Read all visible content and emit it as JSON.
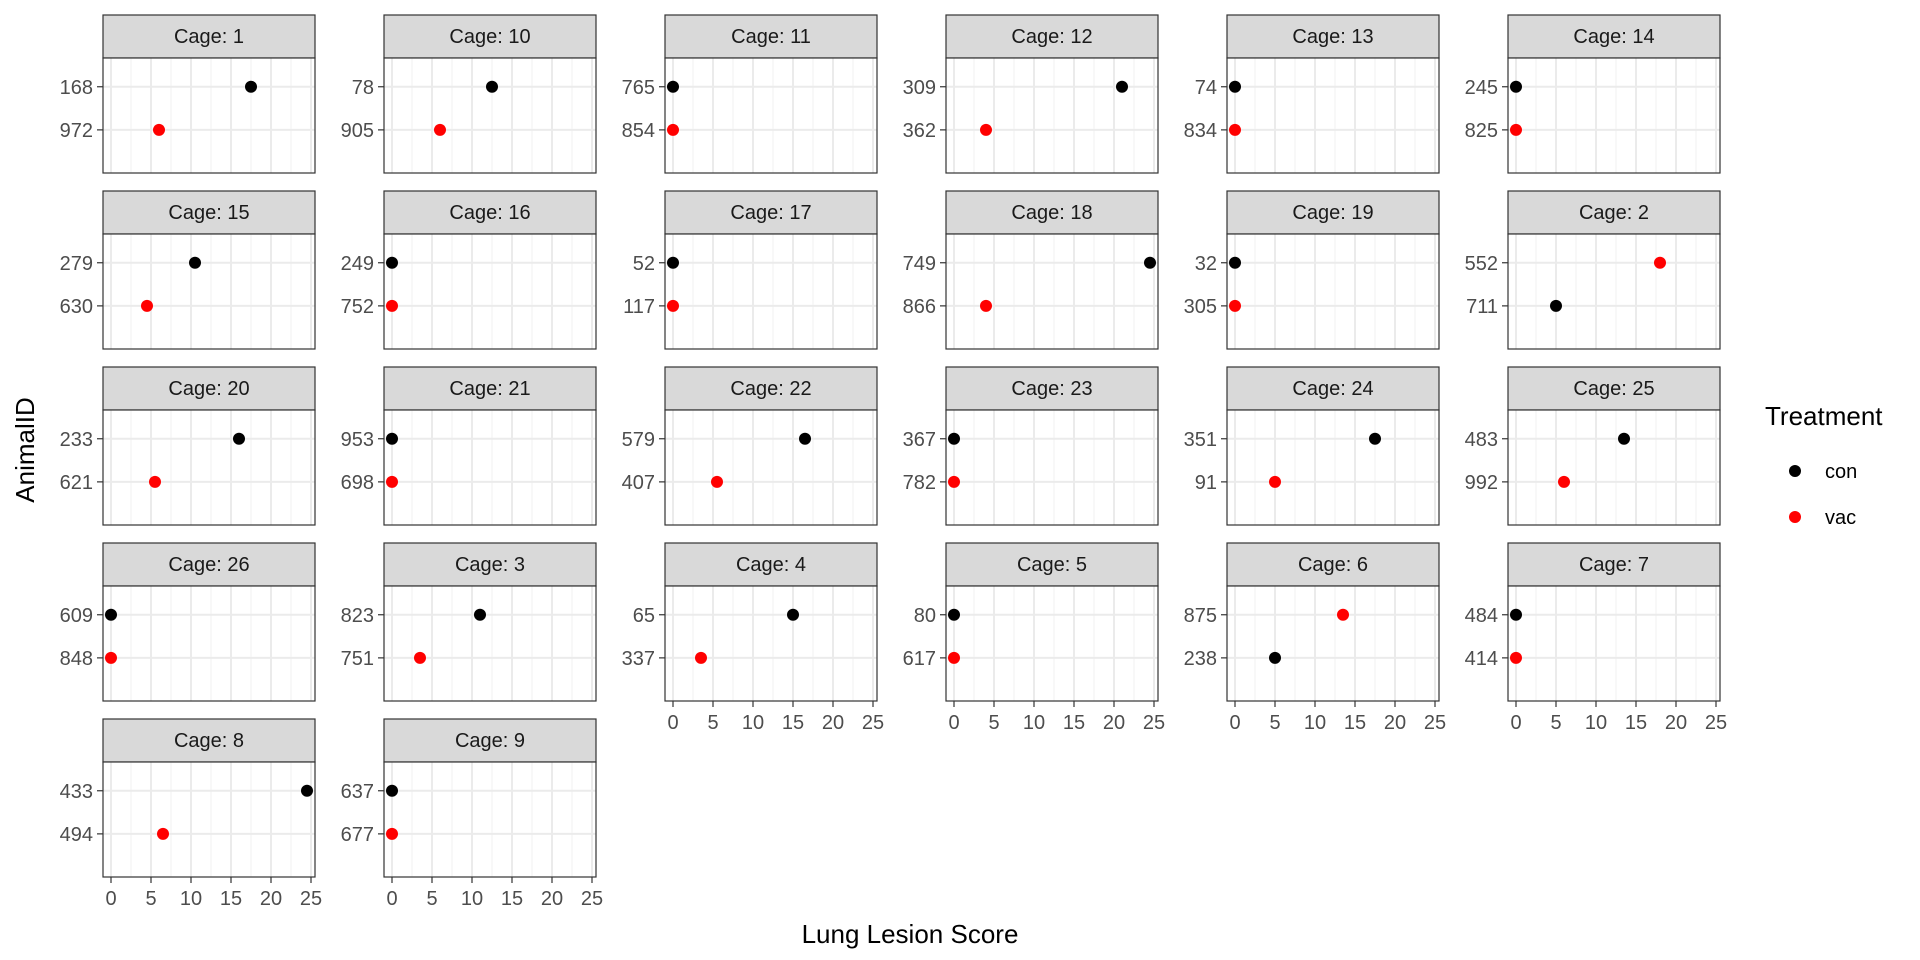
{
  "chart_data": {
    "type": "scatter",
    "chart_kind": "faceted dot plot",
    "xlabel": "Lung Lesion Score",
    "ylabel": "AnimalID",
    "xlim": [
      -1,
      25.5
    ],
    "x_ticks": [
      "0",
      "5",
      "10",
      "15",
      "20",
      "25"
    ],
    "grid": true,
    "legend": {
      "title": "Treatment",
      "position": "right",
      "entries": [
        {
          "label": "con",
          "color": "#000000"
        },
        {
          "label": "vac",
          "color": "#FF0000"
        }
      ]
    },
    "facets": [
      {
        "label": "Cage: 1",
        "points": [
          {
            "id": "168",
            "x": 17.5,
            "group": "con"
          },
          {
            "id": "972",
            "x": 6,
            "group": "vac"
          }
        ]
      },
      {
        "label": "Cage: 10",
        "points": [
          {
            "id": "78",
            "x": 12.5,
            "group": "con"
          },
          {
            "id": "905",
            "x": 6,
            "group": "vac"
          }
        ]
      },
      {
        "label": "Cage: 11",
        "points": [
          {
            "id": "765",
            "x": 0,
            "group": "con"
          },
          {
            "id": "854",
            "x": 0,
            "group": "vac"
          }
        ]
      },
      {
        "label": "Cage: 12",
        "points": [
          {
            "id": "309",
            "x": 21,
            "group": "con"
          },
          {
            "id": "362",
            "x": 4,
            "group": "vac"
          }
        ]
      },
      {
        "label": "Cage: 13",
        "points": [
          {
            "id": "74",
            "x": 0,
            "group": "con"
          },
          {
            "id": "834",
            "x": 0,
            "group": "vac"
          }
        ]
      },
      {
        "label": "Cage: 14",
        "points": [
          {
            "id": "245",
            "x": 0,
            "group": "con"
          },
          {
            "id": "825",
            "x": 0,
            "group": "vac"
          }
        ]
      },
      {
        "label": "Cage: 15",
        "points": [
          {
            "id": "279",
            "x": 10.5,
            "group": "con"
          },
          {
            "id": "630",
            "x": 4.5,
            "group": "vac"
          }
        ]
      },
      {
        "label": "Cage: 16",
        "points": [
          {
            "id": "249",
            "x": 0,
            "group": "con"
          },
          {
            "id": "752",
            "x": 0,
            "group": "vac"
          }
        ]
      },
      {
        "label": "Cage: 17",
        "points": [
          {
            "id": "52",
            "x": 0,
            "group": "con"
          },
          {
            "id": "117",
            "x": 0,
            "group": "vac"
          }
        ]
      },
      {
        "label": "Cage: 18",
        "points": [
          {
            "id": "749",
            "x": 24.5,
            "group": "con"
          },
          {
            "id": "866",
            "x": 4,
            "group": "vac"
          }
        ]
      },
      {
        "label": "Cage: 19",
        "points": [
          {
            "id": "32",
            "x": 0,
            "group": "con"
          },
          {
            "id": "305",
            "x": 0,
            "group": "vac"
          }
        ]
      },
      {
        "label": "Cage: 2",
        "points": [
          {
            "id": "552",
            "x": 18,
            "group": "vac"
          },
          {
            "id": "711",
            "x": 5,
            "group": "con"
          }
        ]
      },
      {
        "label": "Cage: 20",
        "points": [
          {
            "id": "233",
            "x": 16,
            "group": "con"
          },
          {
            "id": "621",
            "x": 5.5,
            "group": "vac"
          }
        ]
      },
      {
        "label": "Cage: 21",
        "points": [
          {
            "id": "953",
            "x": 0,
            "group": "con"
          },
          {
            "id": "698",
            "x": 0,
            "group": "vac"
          }
        ]
      },
      {
        "label": "Cage: 22",
        "points": [
          {
            "id": "579",
            "x": 16.5,
            "group": "con"
          },
          {
            "id": "407",
            "x": 5.5,
            "group": "vac"
          }
        ]
      },
      {
        "label": "Cage: 23",
        "points": [
          {
            "id": "367",
            "x": 0,
            "group": "con"
          },
          {
            "id": "782",
            "x": 0,
            "group": "vac"
          }
        ]
      },
      {
        "label": "Cage: 24",
        "points": [
          {
            "id": "351",
            "x": 17.5,
            "group": "con"
          },
          {
            "id": "91",
            "x": 5,
            "group": "vac"
          }
        ]
      },
      {
        "label": "Cage: 25",
        "points": [
          {
            "id": "483",
            "x": 13.5,
            "group": "con"
          },
          {
            "id": "992",
            "x": 6,
            "group": "vac"
          }
        ]
      },
      {
        "label": "Cage: 26",
        "points": [
          {
            "id": "609",
            "x": 0,
            "group": "con"
          },
          {
            "id": "848",
            "x": 0,
            "group": "vac"
          }
        ]
      },
      {
        "label": "Cage: 3",
        "points": [
          {
            "id": "823",
            "x": 11,
            "group": "con"
          },
          {
            "id": "751",
            "x": 3.5,
            "group": "vac"
          }
        ]
      },
      {
        "label": "Cage: 4",
        "points": [
          {
            "id": "65",
            "x": 15,
            "group": "con"
          },
          {
            "id": "337",
            "x": 3.5,
            "group": "vac"
          }
        ]
      },
      {
        "label": "Cage: 5",
        "points": [
          {
            "id": "80",
            "x": 0,
            "group": "con"
          },
          {
            "id": "617",
            "x": 0,
            "group": "vac"
          }
        ]
      },
      {
        "label": "Cage: 6",
        "points": [
          {
            "id": "875",
            "x": 13.5,
            "group": "vac"
          },
          {
            "id": "238",
            "x": 5,
            "group": "con"
          }
        ]
      },
      {
        "label": "Cage: 7",
        "points": [
          {
            "id": "484",
            "x": 0,
            "group": "con"
          },
          {
            "id": "414",
            "x": 0,
            "group": "vac"
          }
        ]
      },
      {
        "label": "Cage: 8",
        "points": [
          {
            "id": "433",
            "x": 24.5,
            "group": "con"
          },
          {
            "id": "494",
            "x": 6.5,
            "group": "vac"
          }
        ]
      },
      {
        "label": "Cage: 9",
        "points": [
          {
            "id": "637",
            "x": 0,
            "group": "con"
          },
          {
            "id": "677",
            "x": 0,
            "group": "vac"
          }
        ]
      }
    ]
  }
}
